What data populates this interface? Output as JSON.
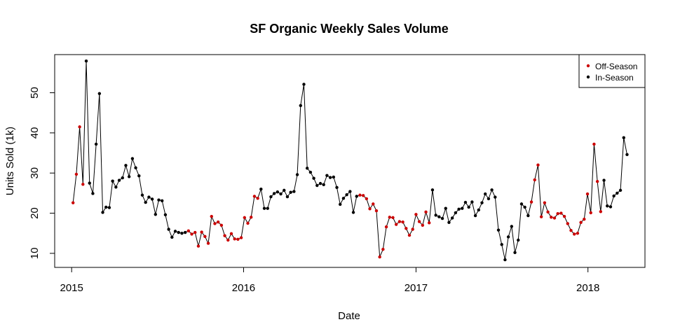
{
  "chart_data": {
    "type": "line",
    "title": "SF Organic Weekly Sales Volume",
    "xlabel": "Date",
    "ylabel": "Units Sold (1k)",
    "x_ticks": [
      "2015",
      "2016",
      "2017",
      "2018"
    ],
    "y_ticks": [
      10,
      20,
      30,
      40,
      50
    ],
    "xlim": [
      "2014-11-26",
      "2018-05-02"
    ],
    "ylim": [
      6.5,
      59.5
    ],
    "grid": false,
    "legend_position": "top-right",
    "legend": [
      {
        "label": "Off-Season",
        "color": "#cc0000"
      },
      {
        "label": "In-Season",
        "color": "#000000"
      }
    ],
    "colors": {
      "off_season": "#cc0000",
      "in_season": "#000000",
      "line": "#000000"
    },
    "points": [
      {
        "date": "2015-01-04",
        "y": 22.6,
        "season": "off"
      },
      {
        "date": "2015-01-11",
        "y": 29.7,
        "season": "off"
      },
      {
        "date": "2015-01-18",
        "y": 41.5,
        "season": "off"
      },
      {
        "date": "2015-01-25",
        "y": 27.2,
        "season": "off"
      },
      {
        "date": "2015-02-01",
        "y": 57.9,
        "season": "in"
      },
      {
        "date": "2015-02-08",
        "y": 27.5,
        "season": "in"
      },
      {
        "date": "2015-02-15",
        "y": 24.9,
        "season": "in"
      },
      {
        "date": "2015-02-22",
        "y": 37.2,
        "season": "in"
      },
      {
        "date": "2015-03-01",
        "y": 49.8,
        "season": "in"
      },
      {
        "date": "2015-03-08",
        "y": 20.2,
        "season": "in"
      },
      {
        "date": "2015-03-15",
        "y": 21.5,
        "season": "in"
      },
      {
        "date": "2015-03-22",
        "y": 21.4,
        "season": "in"
      },
      {
        "date": "2015-03-29",
        "y": 28.0,
        "season": "in"
      },
      {
        "date": "2015-04-05",
        "y": 26.5,
        "season": "in"
      },
      {
        "date": "2015-04-12",
        "y": 28.2,
        "season": "in"
      },
      {
        "date": "2015-04-19",
        "y": 28.8,
        "season": "in"
      },
      {
        "date": "2015-04-26",
        "y": 31.9,
        "season": "in"
      },
      {
        "date": "2015-05-03",
        "y": 29.1,
        "season": "in"
      },
      {
        "date": "2015-05-10",
        "y": 33.6,
        "season": "in"
      },
      {
        "date": "2015-05-17",
        "y": 31.3,
        "season": "in"
      },
      {
        "date": "2015-05-24",
        "y": 29.3,
        "season": "in"
      },
      {
        "date": "2015-05-31",
        "y": 24.5,
        "season": "in"
      },
      {
        "date": "2015-06-07",
        "y": 22.7,
        "season": "in"
      },
      {
        "date": "2015-06-14",
        "y": 24.0,
        "season": "in"
      },
      {
        "date": "2015-06-21",
        "y": 23.5,
        "season": "in"
      },
      {
        "date": "2015-06-28",
        "y": 19.7,
        "season": "in"
      },
      {
        "date": "2015-07-05",
        "y": 23.3,
        "season": "in"
      },
      {
        "date": "2015-07-12",
        "y": 23.1,
        "season": "in"
      },
      {
        "date": "2015-07-19",
        "y": 19.6,
        "season": "in"
      },
      {
        "date": "2015-07-26",
        "y": 16.0,
        "season": "in"
      },
      {
        "date": "2015-08-02",
        "y": 14.0,
        "season": "in"
      },
      {
        "date": "2015-08-09",
        "y": 15.5,
        "season": "in"
      },
      {
        "date": "2015-08-16",
        "y": 15.2,
        "season": "in"
      },
      {
        "date": "2015-08-23",
        "y": 15.0,
        "season": "in"
      },
      {
        "date": "2015-08-30",
        "y": 15.2,
        "season": "in"
      },
      {
        "date": "2015-09-06",
        "y": 15.6,
        "season": "off"
      },
      {
        "date": "2015-09-13",
        "y": 14.8,
        "season": "off"
      },
      {
        "date": "2015-09-20",
        "y": 15.2,
        "season": "off"
      },
      {
        "date": "2015-09-27",
        "y": 11.8,
        "season": "off"
      },
      {
        "date": "2015-10-04",
        "y": 15.3,
        "season": "off"
      },
      {
        "date": "2015-10-11",
        "y": 14.2,
        "season": "off"
      },
      {
        "date": "2015-10-18",
        "y": 12.5,
        "season": "off"
      },
      {
        "date": "2015-10-25",
        "y": 19.2,
        "season": "off"
      },
      {
        "date": "2015-11-01",
        "y": 17.4,
        "season": "off"
      },
      {
        "date": "2015-11-08",
        "y": 17.8,
        "season": "off"
      },
      {
        "date": "2015-11-15",
        "y": 17.0,
        "season": "off"
      },
      {
        "date": "2015-11-22",
        "y": 14.4,
        "season": "off"
      },
      {
        "date": "2015-11-29",
        "y": 13.3,
        "season": "off"
      },
      {
        "date": "2015-12-06",
        "y": 14.9,
        "season": "off"
      },
      {
        "date": "2015-12-13",
        "y": 13.6,
        "season": "off"
      },
      {
        "date": "2015-12-20",
        "y": 13.5,
        "season": "off"
      },
      {
        "date": "2015-12-27",
        "y": 13.9,
        "season": "off"
      },
      {
        "date": "2016-01-03",
        "y": 18.9,
        "season": "off"
      },
      {
        "date": "2016-01-10",
        "y": 17.5,
        "season": "off"
      },
      {
        "date": "2016-01-17",
        "y": 19.0,
        "season": "off"
      },
      {
        "date": "2016-01-24",
        "y": 24.2,
        "season": "off"
      },
      {
        "date": "2016-01-31",
        "y": 23.7,
        "season": "off"
      },
      {
        "date": "2016-02-07",
        "y": 26.0,
        "season": "in"
      },
      {
        "date": "2016-02-14",
        "y": 21.2,
        "season": "in"
      },
      {
        "date": "2016-02-21",
        "y": 21.2,
        "season": "in"
      },
      {
        "date": "2016-02-28",
        "y": 24.1,
        "season": "in"
      },
      {
        "date": "2016-03-06",
        "y": 24.9,
        "season": "in"
      },
      {
        "date": "2016-03-13",
        "y": 25.3,
        "season": "in"
      },
      {
        "date": "2016-03-20",
        "y": 24.8,
        "season": "in"
      },
      {
        "date": "2016-03-27",
        "y": 25.7,
        "season": "in"
      },
      {
        "date": "2016-04-03",
        "y": 24.1,
        "season": "in"
      },
      {
        "date": "2016-04-10",
        "y": 25.2,
        "season": "in"
      },
      {
        "date": "2016-04-17",
        "y": 25.4,
        "season": "in"
      },
      {
        "date": "2016-04-24",
        "y": 29.6,
        "season": "in"
      },
      {
        "date": "2016-05-01",
        "y": 46.8,
        "season": "in"
      },
      {
        "date": "2016-05-08",
        "y": 52.1,
        "season": "in"
      },
      {
        "date": "2016-05-15",
        "y": 31.2,
        "season": "in"
      },
      {
        "date": "2016-05-22",
        "y": 30.2,
        "season": "in"
      },
      {
        "date": "2016-05-29",
        "y": 28.7,
        "season": "in"
      },
      {
        "date": "2016-06-05",
        "y": 26.9,
        "season": "in"
      },
      {
        "date": "2016-06-12",
        "y": 27.4,
        "season": "in"
      },
      {
        "date": "2016-06-19",
        "y": 27.1,
        "season": "in"
      },
      {
        "date": "2016-06-26",
        "y": 29.4,
        "season": "in"
      },
      {
        "date": "2016-07-03",
        "y": 28.9,
        "season": "in"
      },
      {
        "date": "2016-07-10",
        "y": 29.0,
        "season": "in"
      },
      {
        "date": "2016-07-17",
        "y": 26.4,
        "season": "in"
      },
      {
        "date": "2016-07-24",
        "y": 22.2,
        "season": "in"
      },
      {
        "date": "2016-07-31",
        "y": 23.7,
        "season": "in"
      },
      {
        "date": "2016-08-07",
        "y": 24.6,
        "season": "in"
      },
      {
        "date": "2016-08-14",
        "y": 25.4,
        "season": "in"
      },
      {
        "date": "2016-08-21",
        "y": 20.2,
        "season": "in"
      },
      {
        "date": "2016-08-28",
        "y": 24.2,
        "season": "in"
      },
      {
        "date": "2016-09-04",
        "y": 24.5,
        "season": "off"
      },
      {
        "date": "2016-09-11",
        "y": 24.4,
        "season": "off"
      },
      {
        "date": "2016-09-18",
        "y": 23.6,
        "season": "off"
      },
      {
        "date": "2016-09-25",
        "y": 21.1,
        "season": "off"
      },
      {
        "date": "2016-10-02",
        "y": 22.3,
        "season": "off"
      },
      {
        "date": "2016-10-09",
        "y": 20.6,
        "season": "off"
      },
      {
        "date": "2016-10-16",
        "y": 9.1,
        "season": "off"
      },
      {
        "date": "2016-10-23",
        "y": 11.0,
        "season": "off"
      },
      {
        "date": "2016-10-30",
        "y": 16.6,
        "season": "off"
      },
      {
        "date": "2016-11-06",
        "y": 19.0,
        "season": "off"
      },
      {
        "date": "2016-11-13",
        "y": 18.9,
        "season": "off"
      },
      {
        "date": "2016-11-20",
        "y": 17.2,
        "season": "off"
      },
      {
        "date": "2016-11-27",
        "y": 17.9,
        "season": "off"
      },
      {
        "date": "2016-12-04",
        "y": 17.8,
        "season": "off"
      },
      {
        "date": "2016-12-11",
        "y": 16.2,
        "season": "off"
      },
      {
        "date": "2016-12-18",
        "y": 14.5,
        "season": "off"
      },
      {
        "date": "2016-12-25",
        "y": 16.0,
        "season": "off"
      },
      {
        "date": "2017-01-01",
        "y": 19.7,
        "season": "off"
      },
      {
        "date": "2017-01-08",
        "y": 17.9,
        "season": "off"
      },
      {
        "date": "2017-01-15",
        "y": 17.0,
        "season": "off"
      },
      {
        "date": "2017-01-22",
        "y": 20.3,
        "season": "off"
      },
      {
        "date": "2017-01-29",
        "y": 17.6,
        "season": "off"
      },
      {
        "date": "2017-02-05",
        "y": 25.8,
        "season": "in"
      },
      {
        "date": "2017-02-12",
        "y": 19.5,
        "season": "in"
      },
      {
        "date": "2017-02-19",
        "y": 19.1,
        "season": "in"
      },
      {
        "date": "2017-02-26",
        "y": 18.7,
        "season": "in"
      },
      {
        "date": "2017-03-05",
        "y": 21.2,
        "season": "in"
      },
      {
        "date": "2017-03-12",
        "y": 17.7,
        "season": "in"
      },
      {
        "date": "2017-03-19",
        "y": 18.8,
        "season": "in"
      },
      {
        "date": "2017-03-26",
        "y": 20.1,
        "season": "in"
      },
      {
        "date": "2017-04-02",
        "y": 21.0,
        "season": "in"
      },
      {
        "date": "2017-04-09",
        "y": 21.2,
        "season": "in"
      },
      {
        "date": "2017-04-16",
        "y": 22.7,
        "season": "in"
      },
      {
        "date": "2017-04-23",
        "y": 21.5,
        "season": "in"
      },
      {
        "date": "2017-04-30",
        "y": 22.8,
        "season": "in"
      },
      {
        "date": "2017-05-07",
        "y": 19.4,
        "season": "in"
      },
      {
        "date": "2017-05-14",
        "y": 20.8,
        "season": "in"
      },
      {
        "date": "2017-05-21",
        "y": 22.6,
        "season": "in"
      },
      {
        "date": "2017-05-28",
        "y": 24.8,
        "season": "in"
      },
      {
        "date": "2017-06-04",
        "y": 23.6,
        "season": "in"
      },
      {
        "date": "2017-06-11",
        "y": 25.8,
        "season": "in"
      },
      {
        "date": "2017-06-18",
        "y": 24.0,
        "season": "in"
      },
      {
        "date": "2017-06-25",
        "y": 15.8,
        "season": "in"
      },
      {
        "date": "2017-07-02",
        "y": 12.2,
        "season": "in"
      },
      {
        "date": "2017-07-09",
        "y": 8.4,
        "season": "in"
      },
      {
        "date": "2017-07-16",
        "y": 14.1,
        "season": "in"
      },
      {
        "date": "2017-07-23",
        "y": 16.7,
        "season": "in"
      },
      {
        "date": "2017-07-30",
        "y": 10.2,
        "season": "in"
      },
      {
        "date": "2017-08-06",
        "y": 13.3,
        "season": "in"
      },
      {
        "date": "2017-08-13",
        "y": 22.3,
        "season": "in"
      },
      {
        "date": "2017-08-20",
        "y": 21.5,
        "season": "in"
      },
      {
        "date": "2017-08-27",
        "y": 19.4,
        "season": "in"
      },
      {
        "date": "2017-09-03",
        "y": 22.8,
        "season": "off"
      },
      {
        "date": "2017-09-10",
        "y": 28.3,
        "season": "off"
      },
      {
        "date": "2017-09-17",
        "y": 32.0,
        "season": "off"
      },
      {
        "date": "2017-09-24",
        "y": 19.1,
        "season": "off"
      },
      {
        "date": "2017-10-01",
        "y": 22.6,
        "season": "off"
      },
      {
        "date": "2017-10-08",
        "y": 20.3,
        "season": "off"
      },
      {
        "date": "2017-10-15",
        "y": 19.0,
        "season": "off"
      },
      {
        "date": "2017-10-22",
        "y": 18.8,
        "season": "off"
      },
      {
        "date": "2017-10-29",
        "y": 19.9,
        "season": "off"
      },
      {
        "date": "2017-11-05",
        "y": 20.0,
        "season": "off"
      },
      {
        "date": "2017-11-12",
        "y": 19.2,
        "season": "off"
      },
      {
        "date": "2017-11-19",
        "y": 17.4,
        "season": "off"
      },
      {
        "date": "2017-11-26",
        "y": 15.7,
        "season": "off"
      },
      {
        "date": "2017-12-03",
        "y": 14.8,
        "season": "off"
      },
      {
        "date": "2017-12-10",
        "y": 15.0,
        "season": "off"
      },
      {
        "date": "2017-12-17",
        "y": 17.7,
        "season": "off"
      },
      {
        "date": "2017-12-24",
        "y": 18.5,
        "season": "off"
      },
      {
        "date": "2017-12-31",
        "y": 24.8,
        "season": "off"
      },
      {
        "date": "2018-01-07",
        "y": 20.1,
        "season": "off"
      },
      {
        "date": "2018-01-14",
        "y": 37.2,
        "season": "off"
      },
      {
        "date": "2018-01-21",
        "y": 27.9,
        "season": "off"
      },
      {
        "date": "2018-01-28",
        "y": 20.4,
        "season": "off"
      },
      {
        "date": "2018-02-04",
        "y": 28.2,
        "season": "in"
      },
      {
        "date": "2018-02-11",
        "y": 21.8,
        "season": "in"
      },
      {
        "date": "2018-02-18",
        "y": 21.6,
        "season": "in"
      },
      {
        "date": "2018-02-25",
        "y": 24.3,
        "season": "in"
      },
      {
        "date": "2018-03-04",
        "y": 25.0,
        "season": "in"
      },
      {
        "date": "2018-03-11",
        "y": 25.7,
        "season": "in"
      },
      {
        "date": "2018-03-18",
        "y": 38.8,
        "season": "in"
      },
      {
        "date": "2018-03-25",
        "y": 34.6,
        "season": "in"
      }
    ]
  }
}
